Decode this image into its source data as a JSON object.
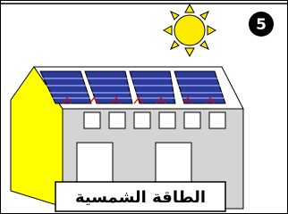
{
  "badge": "5",
  "caption": "الطاقة الشمسية"
}
